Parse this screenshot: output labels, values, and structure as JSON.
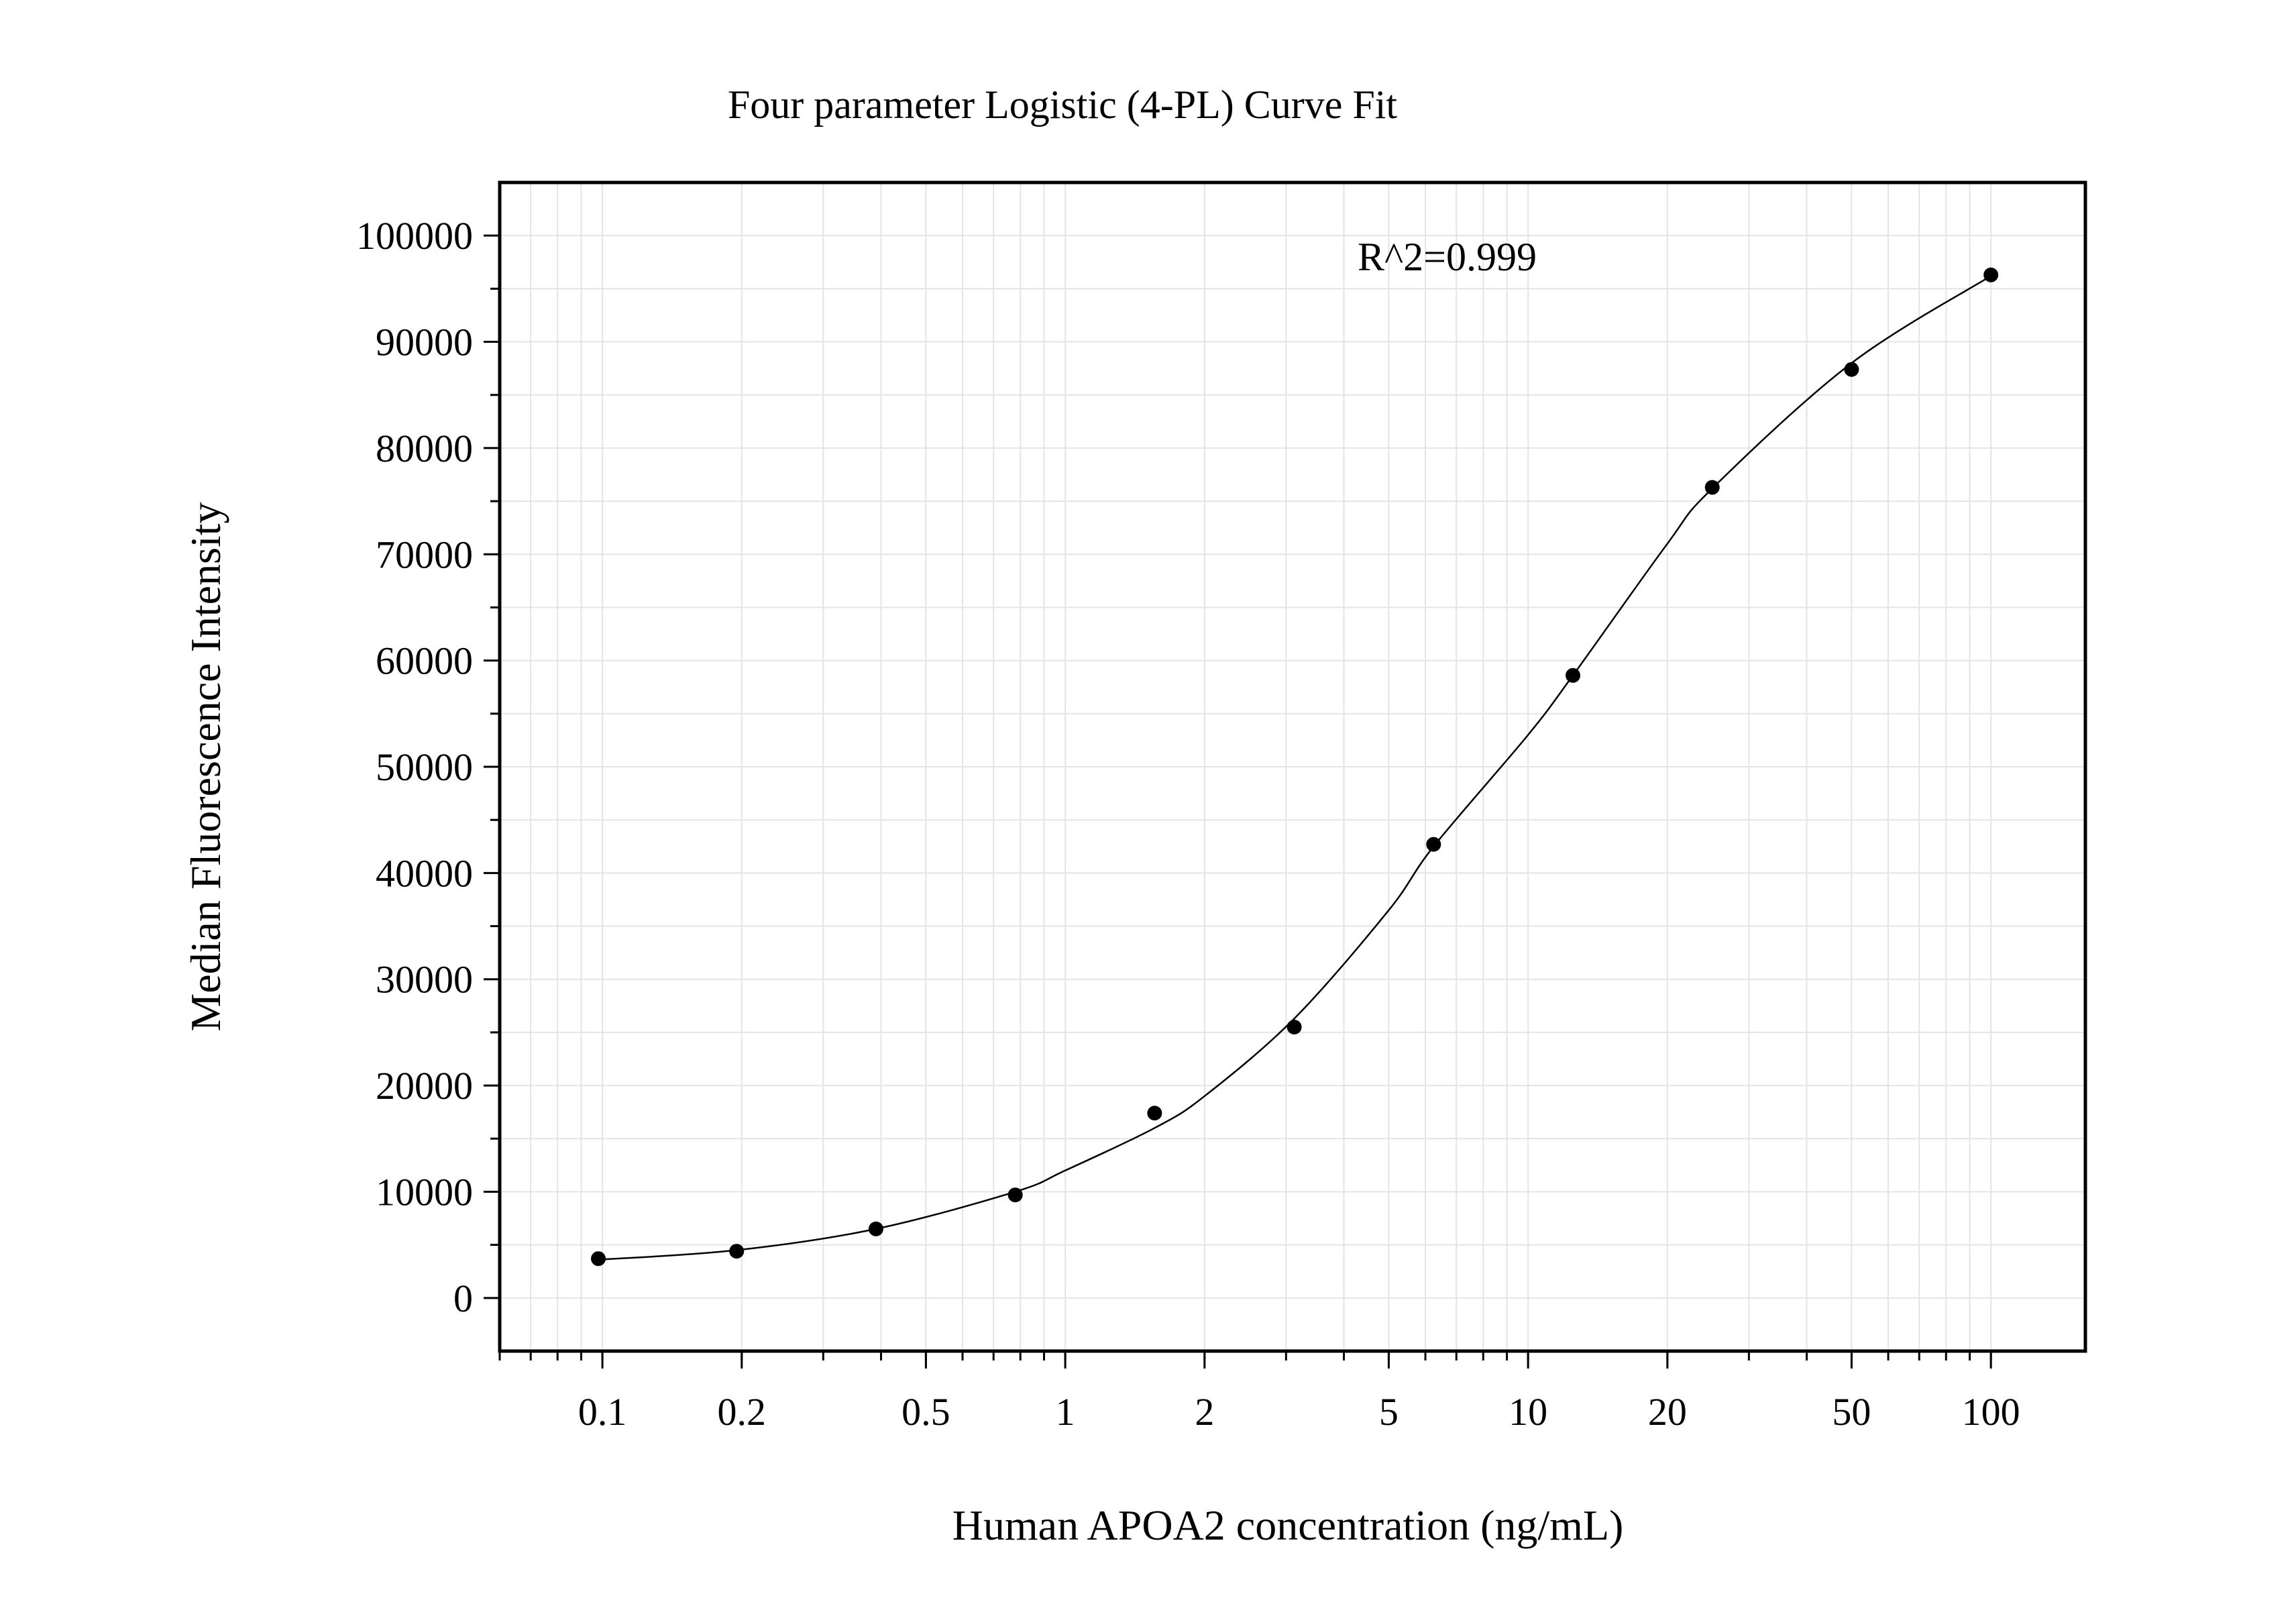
{
  "chart_data": {
    "type": "scatter",
    "title": "Four parameter Logistic (4-PL) Curve Fit",
    "xlabel": "Human APOA2 concentration (ng/mL)",
    "ylabel": "Median Fluorescence Intensity",
    "x_scale": "log",
    "xlim": [
      0.06,
      160
    ],
    "ylim": [
      -5000,
      105000
    ],
    "x_ticks": [
      0.1,
      0.2,
      0.5,
      1,
      2,
      5,
      10,
      20,
      50,
      100
    ],
    "x_tick_labels": [
      "0.1",
      "0.2",
      "0.5",
      "1",
      "2",
      "5",
      "10",
      "20",
      "50",
      "100"
    ],
    "y_ticks": [
      0,
      10000,
      20000,
      30000,
      40000,
      50000,
      60000,
      70000,
      80000,
      90000,
      100000
    ],
    "y_tick_labels": [
      "0",
      "10000",
      "20000",
      "30000",
      "40000",
      "50000",
      "60000",
      "70000",
      "80000",
      "90000",
      "100000"
    ],
    "grid": true,
    "annotation": "R^2=0.999",
    "series": [
      {
        "points": [
          {
            "x": 0.098,
            "y": 3700
          },
          {
            "x": 0.195,
            "y": 4400
          },
          {
            "x": 0.39,
            "y": 6500
          },
          {
            "x": 0.78,
            "y": 9700
          },
          {
            "x": 1.56,
            "y": 17400
          },
          {
            "x": 3.125,
            "y": 25500
          },
          {
            "x": 6.25,
            "y": 42700
          },
          {
            "x": 12.5,
            "y": 58600
          },
          {
            "x": 25,
            "y": 76300
          },
          {
            "x": 50,
            "y": 87400
          },
          {
            "x": 100,
            "y": 96300
          }
        ]
      }
    ],
    "fit_curve": [
      {
        "x": 0.098,
        "y": 3600
      },
      {
        "x": 0.195,
        "y": 4500
      },
      {
        "x": 0.39,
        "y": 6500
      },
      {
        "x": 0.78,
        "y": 10000
      },
      {
        "x": 1.0,
        "y": 12000
      },
      {
        "x": 1.56,
        "y": 16000
      },
      {
        "x": 2.0,
        "y": 19000
      },
      {
        "x": 3.125,
        "y": 26300
      },
      {
        "x": 5.0,
        "y": 36500
      },
      {
        "x": 6.25,
        "y": 42500
      },
      {
        "x": 10.0,
        "y": 53000
      },
      {
        "x": 12.5,
        "y": 58600
      },
      {
        "x": 20.0,
        "y": 71000
      },
      {
        "x": 25.0,
        "y": 76200
      },
      {
        "x": 50.0,
        "y": 88000
      },
      {
        "x": 100.0,
        "y": 96200
      }
    ]
  }
}
